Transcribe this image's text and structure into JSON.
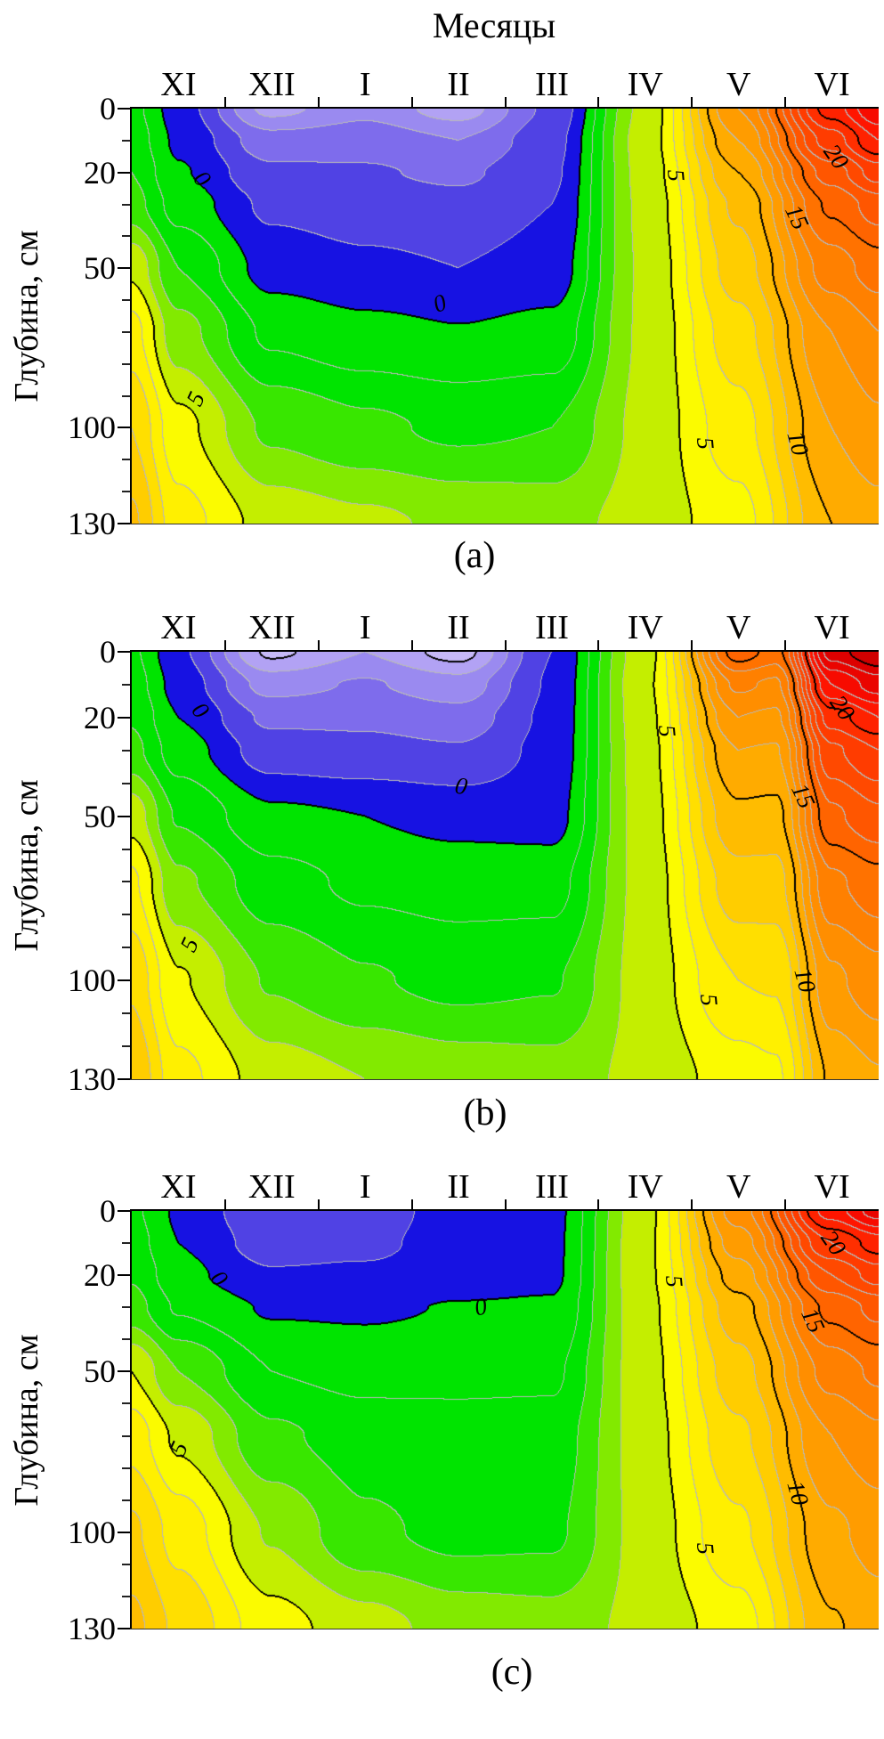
{
  "title": "Месяцы",
  "ylabel": "Глубина, см",
  "months": [
    "XI",
    "XII",
    "I",
    "II",
    "III",
    "IV",
    "V",
    "VI"
  ],
  "depth_axis": {
    "major": [
      {
        "v": 0,
        "label": "0"
      },
      {
        "v": 20,
        "label": "20"
      },
      {
        "v": 50,
        "label": "50"
      },
      {
        "v": 100,
        "label": "100"
      },
      {
        "v": 130,
        "label": "130"
      }
    ],
    "minor": [
      10,
      30,
      40,
      60,
      70,
      80,
      90,
      110,
      120
    ],
    "max": 130
  },
  "contour": {
    "interval": 1,
    "major_every": 5,
    "minor_line_color": "#b9b9b9",
    "major_line_color": "#000000"
  },
  "palette": [
    {
      "v": -5.5,
      "c": "#c6b9f8"
    },
    {
      "v": -4.5,
      "c": "#b2a2f4"
    },
    {
      "v": -3.5,
      "c": "#9a8af0"
    },
    {
      "v": -2.5,
      "c": "#7e6cec"
    },
    {
      "v": -1.5,
      "c": "#5042e4"
    },
    {
      "v": -0.5,
      "c": "#1712e2"
    },
    {
      "v": 0.5,
      "c": "#00e400"
    },
    {
      "v": 1.5,
      "c": "#00e400"
    },
    {
      "v": 2.5,
      "c": "#38e700"
    },
    {
      "v": 3.5,
      "c": "#82ea00"
    },
    {
      "v": 4.5,
      "c": "#c4ee00"
    },
    {
      "v": 5.5,
      "c": "#fbfb00"
    },
    {
      "v": 6.5,
      "c": "#fff000"
    },
    {
      "v": 7.5,
      "c": "#ffdf00"
    },
    {
      "v": 8.5,
      "c": "#ffcd00"
    },
    {
      "v": 9.5,
      "c": "#ffbc00"
    },
    {
      "v": 10.5,
      "c": "#ffab00"
    },
    {
      "v": 11.5,
      "c": "#ff9c00"
    },
    {
      "v": 12.5,
      "c": "#ff8e00"
    },
    {
      "v": 13.5,
      "c": "#ff8000"
    },
    {
      "v": 14.5,
      "c": "#ff7200"
    },
    {
      "v": 15.5,
      "c": "#ff6400"
    },
    {
      "v": 16.5,
      "c": "#ff5600"
    },
    {
      "v": 17.5,
      "c": "#ff4900"
    },
    {
      "v": 18.5,
      "c": "#ff3c00"
    },
    {
      "v": 19.5,
      "c": "#ff2f00"
    },
    {
      "v": 20.5,
      "c": "#ff2200"
    },
    {
      "v": 21.5,
      "c": "#ff1500"
    },
    {
      "v": 22.5,
      "c": "#f70b00"
    },
    {
      "v": 23.5,
      "c": "#ea0400"
    },
    {
      "v": 24.5,
      "c": "#dd0000"
    },
    {
      "v": 25.5,
      "c": "#d00000"
    }
  ],
  "chart_data": [
    {
      "id": "a",
      "caption": "(a)",
      "type": "contour",
      "x_axis_months": [
        "XI",
        "XII",
        "I",
        "II",
        "III",
        "IV",
        "V",
        "VI"
      ],
      "xcoords": [
        -0.5,
        0,
        1,
        2,
        3,
        4,
        5,
        6,
        7,
        7.5
      ],
      "depths": [
        0,
        10,
        20,
        30,
        50,
        70,
        100,
        130
      ],
      "values": [
        [
          1.3,
          -0.5,
          -4.3,
          -3.3,
          -4.5,
          -1.8,
          4.3,
          12.0,
          20.5,
          23.0
        ],
        [
          1.6,
          -0.2,
          -2.6,
          -2.4,
          -3.0,
          -1.4,
          4.5,
          11.0,
          18.5,
          21.0
        ],
        [
          2.0,
          0.1,
          -1.8,
          -1.9,
          -2.2,
          -1.2,
          4.4,
          10.0,
          16.5,
          18.5
        ],
        [
          2.4,
          0.6,
          -1.2,
          -1.5,
          -1.7,
          -1.0,
          4.3,
          9.2,
          15.2,
          16.5
        ],
        [
          4.8,
          2.0,
          -0.4,
          -0.8,
          -1.0,
          -0.6,
          4.2,
          8.5,
          13.5,
          14.5
        ],
        [
          6.4,
          3.4,
          0.8,
          0.3,
          0.05,
          0.3,
          4.2,
          7.6,
          12.0,
          13.0
        ],
        [
          8.0,
          5.3,
          2.8,
          2.2,
          1.8,
          2.0,
          4.3,
          6.6,
          11.0,
          11.8
        ],
        [
          9.2,
          6.4,
          4.6,
          4.2,
          3.8,
          3.6,
          4.4,
          5.6,
          10.0,
          10.6
        ]
      ],
      "contour_labels": [
        {
          "text": "0",
          "m": 0.25,
          "d": 22,
          "angle": 50
        },
        {
          "text": "0",
          "m": 2.8,
          "d": 61,
          "angle": -20
        },
        {
          "text": "5",
          "m": 0.19,
          "d": 91,
          "angle": -65
        },
        {
          "text": "5",
          "m": 5.33,
          "d": 21,
          "angle": 85
        },
        {
          "text": "15",
          "m": 6.62,
          "d": 34,
          "angle": 65
        },
        {
          "text": "20",
          "m": 7.04,
          "d": 15,
          "angle": 55
        },
        {
          "text": "5",
          "m": 5.64,
          "d": 105,
          "angle": 85
        },
        {
          "text": "10",
          "m": 6.63,
          "d": 105,
          "angle": 75
        }
      ]
    },
    {
      "id": "b",
      "caption": "(b)",
      "type": "contour",
      "x_axis_months": [
        "XI",
        "XII",
        "I",
        "II",
        "III",
        "IV",
        "V",
        "VI"
      ],
      "xcoords": [
        -0.5,
        0,
        1,
        2,
        3,
        4,
        5,
        6,
        6.4,
        7,
        7.5
      ],
      "depths": [
        0,
        10,
        20,
        30,
        50,
        70,
        100,
        130
      ],
      "values": [
        [
          1.2,
          -0.8,
          -5.2,
          -4.0,
          -5.4,
          -1.0,
          4.6,
          15.5,
          14.6,
          24.5,
          26.0
        ],
        [
          1.5,
          -0.4,
          -3.4,
          -2.9,
          -3.6,
          -0.9,
          4.8,
          13.2,
          12.8,
          22.0,
          23.5
        ],
        [
          1.9,
          0.0,
          -2.2,
          -2.2,
          -2.6,
          -0.8,
          4.7,
          12.0,
          11.8,
          19.5,
          21.0
        ],
        [
          2.3,
          0.5,
          -1.5,
          -1.7,
          -1.9,
          -0.7,
          4.6,
          11.0,
          10.9,
          17.8,
          19.0
        ],
        [
          4.6,
          1.9,
          0.2,
          0.0,
          -0.3,
          -0.4,
          4.5,
          9.8,
          9.7,
          15.8,
          16.8
        ],
        [
          6.2,
          3.2,
          1.4,
          0.8,
          0.6,
          0.6,
          4.4,
          8.6,
          8.6,
          13.8,
          14.6
        ],
        [
          7.8,
          5.1,
          2.9,
          2.1,
          1.7,
          1.9,
          4.4,
          7.0,
          7.1,
          11.8,
          12.6
        ],
        [
          9.0,
          6.3,
          4.5,
          4.0,
          3.6,
          3.4,
          4.3,
          5.5,
          5.8,
          10.2,
          10.9
        ]
      ],
      "contour_labels": [
        {
          "text": "0",
          "m": 0.23,
          "d": 18,
          "angle": 50
        },
        {
          "text": "0",
          "m": 3.03,
          "d": 41,
          "angle": 10
        },
        {
          "text": "5",
          "m": 0.12,
          "d": 89,
          "angle": -65
        },
        {
          "text": "5",
          "m": 5.23,
          "d": 24,
          "angle": 85
        },
        {
          "text": "15",
          "m": 6.69,
          "d": 44,
          "angle": 65
        },
        {
          "text": "20",
          "m": 7.11,
          "d": 17,
          "angle": 55
        },
        {
          "text": "5",
          "m": 5.68,
          "d": 106,
          "angle": 85
        },
        {
          "text": "10",
          "m": 6.71,
          "d": 100,
          "angle": 75
        }
      ]
    },
    {
      "id": "c",
      "caption": "(c)",
      "type": "contour",
      "x_axis_months": [
        "XI",
        "XII",
        "I",
        "II",
        "III",
        "IV",
        "V",
        "VI"
      ],
      "xcoords": [
        -0.5,
        0,
        1,
        2,
        3,
        4,
        5,
        6,
        7,
        7.5
      ],
      "depths": [
        0,
        10,
        20,
        30,
        50,
        70,
        100,
        130
      ],
      "values": [
        [
          1.2,
          -0.15,
          -1.9,
          -1.6,
          -0.5,
          -0.3,
          4.7,
          12.5,
          21.5,
          23.5
        ],
        [
          1.5,
          0.0,
          -1.5,
          -1.3,
          -0.45,
          -0.25,
          4.8,
          11.5,
          19.0,
          20.5
        ],
        [
          1.9,
          0.3,
          -0.9,
          -0.8,
          -0.4,
          -0.2,
          4.8,
          10.5,
          17.0,
          18.5
        ],
        [
          2.4,
          0.9,
          -0.1,
          -0.15,
          0.05,
          0.1,
          4.7,
          9.6,
          15.3,
          16.3
        ],
        [
          5.0,
          3.0,
          1.0,
          0.7,
          0.8,
          0.8,
          4.6,
          8.6,
          13.4,
          14.2
        ],
        [
          6.6,
          4.8,
          2.2,
          1.5,
          1.3,
          1.4,
          4.5,
          7.8,
          12.0,
          12.8
        ],
        [
          8.2,
          6.6,
          3.9,
          2.2,
          1.7,
          1.8,
          4.4,
          6.8,
          10.8,
          11.4
        ],
        [
          9.3,
          7.8,
          5.4,
          4.4,
          3.6,
          3.4,
          4.3,
          5.5,
          9.9,
          10.5
        ]
      ],
      "contour_labels": [
        {
          "text": "0",
          "m": 0.43,
          "d": 21,
          "angle": 50
        },
        {
          "text": "0",
          "m": 3.24,
          "d": 30,
          "angle": -10
        },
        {
          "text": "5",
          "m": 0.01,
          "d": 74,
          "angle": -65
        },
        {
          "text": "5",
          "m": 5.31,
          "d": 22,
          "angle": 85
        },
        {
          "text": "15",
          "m": 6.79,
          "d": 34,
          "angle": 65
        },
        {
          "text": "20",
          "m": 7.01,
          "d": 10,
          "angle": 55
        },
        {
          "text": "5",
          "m": 5.64,
          "d": 105,
          "angle": 85
        },
        {
          "text": "10",
          "m": 6.63,
          "d": 88,
          "angle": 75
        }
      ]
    }
  ]
}
